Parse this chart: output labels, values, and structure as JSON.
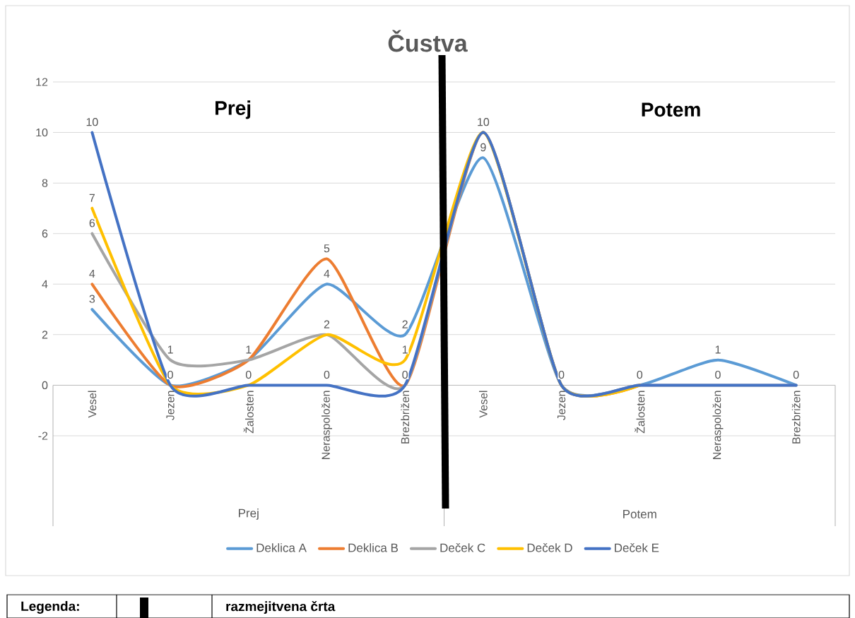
{
  "chart_data": {
    "type": "line",
    "title": "Čustva",
    "categories": [
      "Vesel",
      "Jezen",
      "Žalosten",
      "Neraspoložen",
      "Brezbrižen",
      "Vesel",
      "Jezen",
      "Žalosten",
      "Neraspoložen",
      "Brezbrižen"
    ],
    "series": [
      {
        "name": "Deklica A",
        "color": "#5b9bd5",
        "values": [
          3,
          0,
          1,
          4,
          2,
          9,
          0,
          0,
          1,
          0
        ],
        "value_labels": [
          "3",
          null,
          null,
          "4",
          "2",
          "9",
          null,
          null,
          "1",
          null
        ]
      },
      {
        "name": "Deklica B",
        "color": "#ed7d31",
        "values": [
          4,
          0,
          1,
          5,
          0,
          10,
          0,
          0,
          null,
          null
        ],
        "value_labels": [
          "4",
          null,
          null,
          "5",
          null,
          null,
          null,
          null,
          null,
          null
        ]
      },
      {
        "name": "Deček C",
        "color": "#a5a5a5",
        "values": [
          6,
          1,
          1,
          2,
          0,
          10,
          0,
          0,
          0,
          0
        ],
        "value_labels": [
          "6",
          "1",
          "1",
          null,
          null,
          null,
          null,
          null,
          null,
          null
        ]
      },
      {
        "name": "Deček D",
        "color": "#ffc000",
        "values": [
          7,
          0,
          0,
          2,
          1,
          10,
          0,
          0,
          null,
          null
        ],
        "value_labels": [
          "7",
          null,
          null,
          "2",
          "1",
          null,
          null,
          null,
          null,
          null
        ]
      },
      {
        "name": "Deček E",
        "color": "#4472c4",
        "values": [
          10,
          0,
          0,
          0,
          0,
          10,
          0,
          0,
          0,
          0
        ],
        "value_labels": [
          "10",
          "0",
          "0",
          "0",
          "0",
          "10",
          "0",
          "0",
          "0",
          "0"
        ]
      }
    ],
    "ylim": [
      -2,
      12
    ],
    "yticks": [
      -2,
      0,
      2,
      4,
      6,
      8,
      10,
      12
    ],
    "grid": "y",
    "legend": "bottom",
    "annotations": [
      "Prej",
      "Potem",
      "Prej",
      "Potem",
      "Legenda:",
      "razmejitvena črta"
    ]
  }
}
